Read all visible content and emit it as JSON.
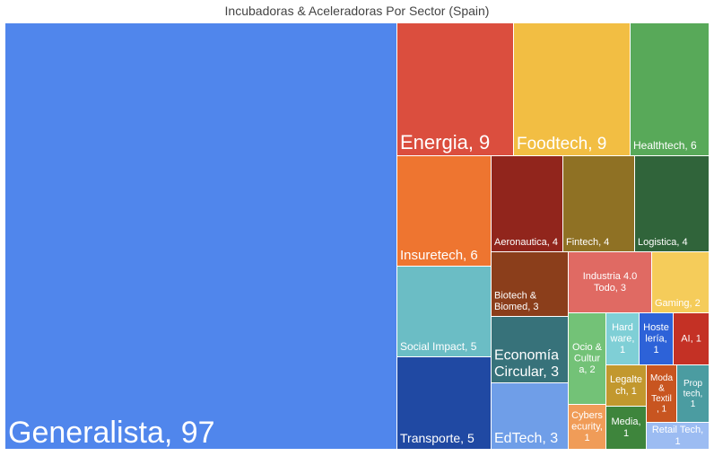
{
  "chart_data": {
    "type": "treemap",
    "title": "Incubadoras & Aceleradoras Por Sector (Spain)",
    "items": [
      {
        "name": "Generalista",
        "value": 97,
        "label": "Generalista, 97",
        "color": "#5086ec"
      },
      {
        "name": "Energia",
        "value": 9,
        "label": "Energia, 9",
        "color": "#db4e3e"
      },
      {
        "name": "Foodtech",
        "value": 9,
        "label": "Foodtech, 9",
        "color": "#f2be43"
      },
      {
        "name": "Healthtech",
        "value": 6,
        "label": "Healthtech, 6",
        "color": "#58a959"
      },
      {
        "name": "Insuretech",
        "value": 6,
        "label": "Insuretech, 6",
        "color": "#ee7530"
      },
      {
        "name": "Aeronautica",
        "value": 4,
        "label": "Aeronautica, 4",
        "color": "#91251c"
      },
      {
        "name": "Fintech",
        "value": 4,
        "label": "Fintech, 4",
        "color": "#8f7124"
      },
      {
        "name": "Logistica",
        "value": 4,
        "label": "Logistica, 4",
        "color": "#30643a"
      },
      {
        "name": "Social Impact",
        "value": 5,
        "label": "Social Impact, 5",
        "color": "#6bbdc5"
      },
      {
        "name": "Transporte",
        "value": 5,
        "label": "Transporte, 5",
        "color": "#2049a3"
      },
      {
        "name": "Biotech & Biomed",
        "value": 3,
        "label": "Biotech & Biomed, 3",
        "color": "#8b3e1b"
      },
      {
        "name": "Industria 4.0 Todo",
        "value": 3,
        "label": "Industria 4.0 Todo, 3",
        "color": "#e06a63"
      },
      {
        "name": "Gaming",
        "value": 2,
        "label": "Gaming, 2",
        "color": "#f5cc5a"
      },
      {
        "name": "Economía Circular",
        "value": 3,
        "label": "Economía Circular, 3",
        "color": "#37727a"
      },
      {
        "name": "EdTech",
        "value": 3,
        "label": "EdTech, 3",
        "color": "#6f9ee8"
      },
      {
        "name": "Ocio & Cultura",
        "value": 2,
        "label": "Ocio & Cultura, 2",
        "color": "#73c277"
      },
      {
        "name": "Hardware",
        "value": 1,
        "label": "Hardware, 1",
        "color": "#7fcfd6"
      },
      {
        "name": "Hosteleria",
        "value": 1,
        "label": "Hostelería, 1",
        "color": "#2d62d8"
      },
      {
        "name": "AI",
        "value": 1,
        "label": "AI, 1",
        "color": "#c43125"
      },
      {
        "name": "Legaltech",
        "value": 1,
        "label": "Legaltech, 1",
        "color": "#c2982e"
      },
      {
        "name": "Moda & Textil",
        "value": 1,
        "label": "Moda & Textil, 1",
        "color": "#c85520"
      },
      {
        "name": "Proptech",
        "value": 1,
        "label": "Proptech, 1",
        "color": "#4b9ca1"
      },
      {
        "name": "Cybersecurity",
        "value": 1,
        "label": "Cybersecurity, 1",
        "color": "#f09c58"
      },
      {
        "name": "Media",
        "value": 1,
        "label": "Media, 1",
        "color": "#3e853c"
      },
      {
        "name": "Retail Tech",
        "value": 1,
        "label": "Retail Tech, 1",
        "color": "#9cbcf2"
      }
    ]
  }
}
